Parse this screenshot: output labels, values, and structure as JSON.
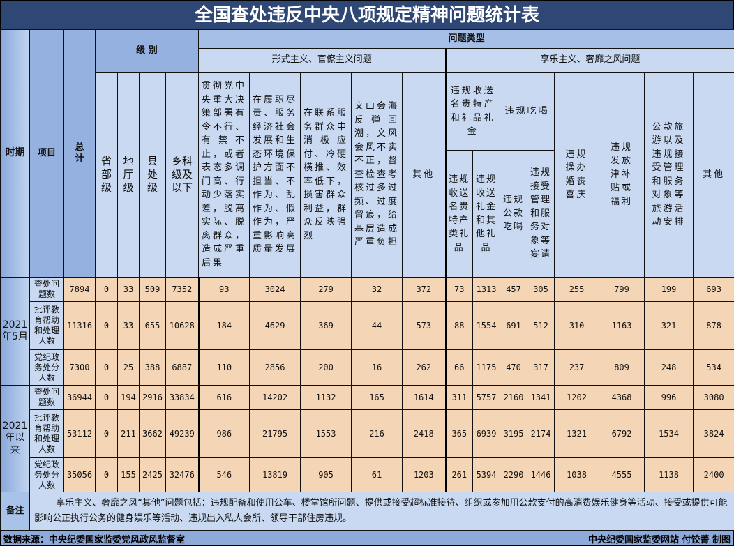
{
  "title": "全国查处违反中央八项规定精神问题统计表",
  "headers": {
    "period": "时期",
    "item": "项目",
    "total": "总计",
    "level": "级 别",
    "problem_type": "问题类型",
    "formalism": "形式主义、官僚主义问题",
    "hedonism": "享乐主义、奢靡之风问题",
    "levels": [
      "省部级",
      "地厅级",
      "县处级",
      "乡科级及以下"
    ],
    "formalism_cols": [
      "贯彻党中央重大决策部署有令不行、有禁不止，或者表态多调门高、行动少落实差，脱离实际、脱离群众，造成严重后果",
      "在履职尽责、服务经济社会发展和生态环境保护方面不担当、不作为、乱作为、假作为，严重影响高质量发展",
      "在联系服务群众中消极应付、冷硬横推、效率低下，损害群众利益，群众反映强烈",
      "文山会海反弹回潮，文风会风不实不正，督查检查考核过多过频、过度留痕，给基层造成严重负担",
      "其他"
    ],
    "gifts_group": "违规收送名贵特产和礼品礼金",
    "gifts_cols": [
      "违规收送名贵特产类礼品",
      "违规收送礼金和其他礼品"
    ],
    "dining_group": "违规吃喝",
    "dining_cols": [
      "违规公款吃喝",
      "违规接受管理和服务对象等宴请"
    ],
    "hedonism_cols": [
      "违规操办婚丧喜庆",
      "违规发放津补贴或福利",
      "公款旅游以及违规接受管理和服务对象等旅游活动安排",
      "其他"
    ]
  },
  "periods": [
    {
      "label": "2021年5月",
      "rows": [
        {
          "item": "查处问题数",
          "values": [
            "7894",
            "0",
            "33",
            "509",
            "7352",
            "93",
            "3024",
            "279",
            "32",
            "372",
            "73",
            "1313",
            "457",
            "305",
            "255",
            "799",
            "199",
            "693"
          ]
        },
        {
          "item": "批评教育帮助和处理人数",
          "values": [
            "11316",
            "0",
            "33",
            "655",
            "10628",
            "184",
            "4629",
            "369",
            "44",
            "573",
            "88",
            "1554",
            "691",
            "512",
            "310",
            "1163",
            "321",
            "878"
          ]
        },
        {
          "item": "党纪政务处分人数",
          "values": [
            "7300",
            "0",
            "25",
            "388",
            "6887",
            "110",
            "2856",
            "200",
            "16",
            "262",
            "66",
            "1175",
            "470",
            "317",
            "237",
            "809",
            "248",
            "534"
          ]
        }
      ]
    },
    {
      "label": "2021年以来",
      "rows": [
        {
          "item": "查处问题数",
          "values": [
            "36944",
            "0",
            "194",
            "2916",
            "33834",
            "616",
            "14202",
            "1132",
            "165",
            "1614",
            "311",
            "5757",
            "2160",
            "1341",
            "1202",
            "4368",
            "996",
            "3080"
          ]
        },
        {
          "item": "批评教育帮助和处理人数",
          "values": [
            "53112",
            "0",
            "211",
            "3662",
            "49239",
            "986",
            "21795",
            "1553",
            "216",
            "2418",
            "365",
            "6939",
            "3195",
            "2174",
            "1321",
            "6792",
            "1534",
            "3824"
          ]
        },
        {
          "item": "党纪政务处分人数",
          "values": [
            "35056",
            "0",
            "155",
            "2425",
            "32476",
            "546",
            "13819",
            "905",
            "61",
            "1203",
            "261",
            "5394",
            "2290",
            "1446",
            "1038",
            "4555",
            "1138",
            "2400"
          ]
        }
      ]
    }
  ],
  "remarks": {
    "label": "备注",
    "text": "享乐主义、奢靡之风“其他”问题包括：违规配备和使用公车、楼堂馆所问题、提供或接受超标准接待、组织或参加用公款支付的高消费娱乐健身等活动、接受或提供可能影响公正执行公务的健身娱乐等活动、违规出入私人会所、领导干部住房违规。"
  },
  "footer": {
    "source": "数据来源：中央纪委国家监委党风政风监督室",
    "credit": "中央纪委国家监委网站 付饺菁 制图"
  },
  "colors": {
    "title_bg": "#2f4775",
    "header_blue": "#95b1df",
    "light_blue": "#c8d9f1",
    "data_bg": "#f4d5b5"
  }
}
